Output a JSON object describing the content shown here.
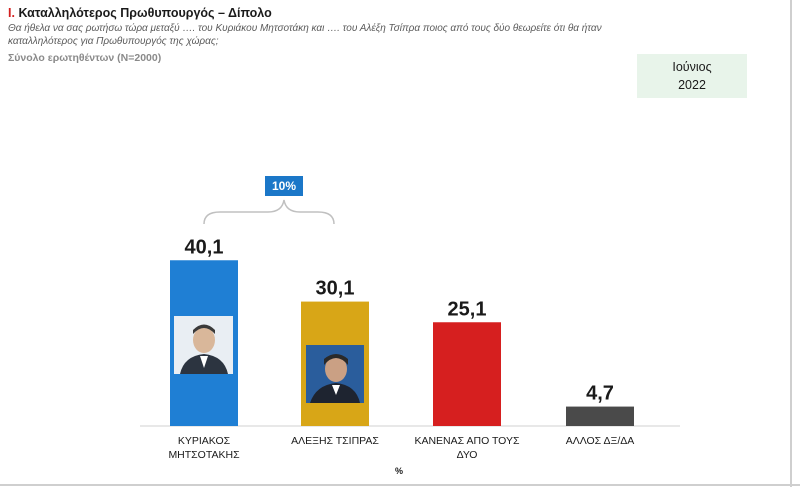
{
  "header": {
    "title_number": "I.",
    "title_text": "Καταλληλότερος Πρωθυπουργός – Δίπολο",
    "question": "Θα ήθελα να σας ρωτήσω τώρα μεταξύ …. του Κυριάκου Μητσοτάκη και …. του Αλέξη Τσίπρα ποιος από τους δύο θεωρείτε ότι θα ήταν καταλληλότερος για Πρωθυπουργός της χώρας;",
    "base": "Σύνολο ερωτηθέντων (Ν=2000)",
    "period_month": "Ιούνιος",
    "period_year": "2022"
  },
  "chart_data": {
    "type": "bar",
    "categories": [
      "ΚΥΡΙΑΚΟΣ\nΜΗΤΣΟΤΑΚΗΣ",
      "ΑΛΕΞΗΣ ΤΣΙΠΡΑΣ",
      "ΚΑΝΕΝΑΣ ΑΠΟ ΤΟΥΣ\nΔΥΟ",
      "ΑΛΛΟΣ ΔΞ/ΔΑ"
    ],
    "values": [
      40.1,
      30.1,
      25.1,
      4.7
    ],
    "value_labels": [
      "40,1",
      "30,1",
      "25,1",
      "4,7"
    ],
    "colors": [
      "#1f7fd4",
      "#d8a617",
      "#d61f1f",
      "#4a4a4a"
    ],
    "unit": "%",
    "difference_label": "10%",
    "ylim": [
      0,
      45
    ],
    "grid": false
  }
}
